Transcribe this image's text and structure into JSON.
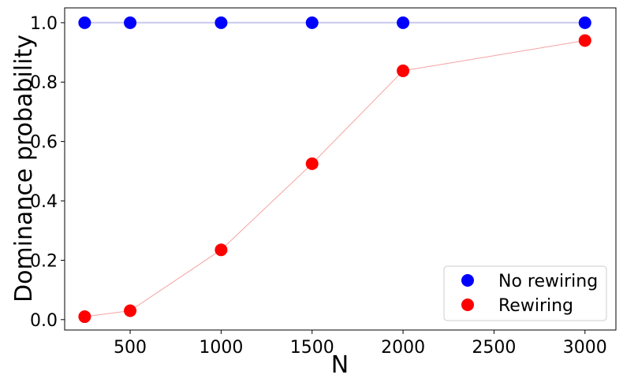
{
  "chart_data": {
    "type": "line",
    "title": "",
    "xlabel": "N",
    "ylabel": "Dominance probability",
    "x": [
      250,
      500,
      1000,
      1500,
      2000,
      3000
    ],
    "xlim": [
      140,
      3170
    ],
    "ylim": [
      -0.035,
      1.05
    ],
    "xticks": [
      500,
      1000,
      1500,
      2000,
      2500,
      3000
    ],
    "yticks": [
      0.0,
      0.2,
      0.4,
      0.6,
      0.8,
      1.0
    ],
    "xtick_labels": [
      "500",
      "1000",
      "1500",
      "2000",
      "2500",
      "3000"
    ],
    "ytick_labels": [
      "0.0",
      "0.2",
      "0.4",
      "0.6",
      "0.8",
      "1.0"
    ],
    "grid": false,
    "legend_position": "lower-right",
    "series": [
      {
        "name": "No rewiring",
        "color": "#0000ff",
        "line_color": "#c8c8f0",
        "values": [
          1.0,
          1.0,
          1.0,
          1.0,
          1.0,
          1.0
        ]
      },
      {
        "name": "Rewiring",
        "color": "#ff0000",
        "line_color": "#f5a3a3",
        "values": [
          0.01,
          0.03,
          0.235,
          0.525,
          0.838,
          0.94
        ]
      }
    ]
  }
}
